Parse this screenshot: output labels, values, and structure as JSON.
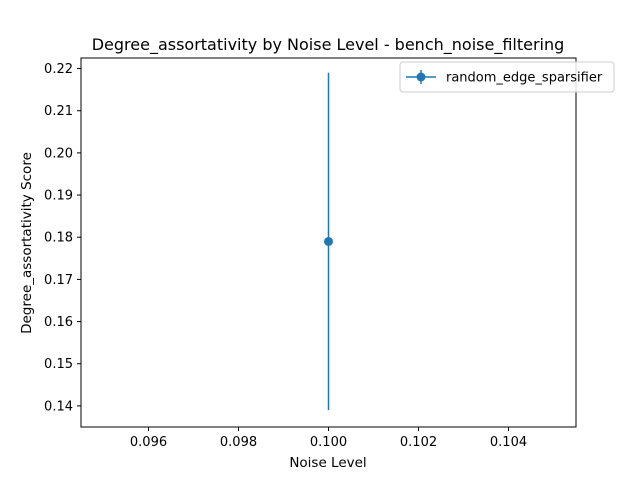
{
  "chart_data": {
    "type": "scatter",
    "title": "Degree_assortativity by Noise Level - bench_noise_filtering",
    "xlabel": "Noise Level",
    "ylabel": "Degree_assortativity Score",
    "xlim": [
      0.0945,
      0.1055
    ],
    "ylim": [
      0.135,
      0.2225
    ],
    "x_ticks": [
      0.096,
      0.098,
      0.1,
      0.102,
      0.104
    ],
    "x_tick_labels": [
      "0.096",
      "0.098",
      "0.100",
      "0.102",
      "0.104"
    ],
    "y_ticks": [
      0.14,
      0.15,
      0.16,
      0.17,
      0.18,
      0.19,
      0.2,
      0.21,
      0.22
    ],
    "y_tick_labels": [
      "0.14",
      "0.15",
      "0.16",
      "0.17",
      "0.18",
      "0.19",
      "0.20",
      "0.21",
      "0.22"
    ],
    "grid": false,
    "legend_position": "top-right",
    "series": [
      {
        "name": "random_edge_sparsifier",
        "color": "#1f77b4",
        "marker": "circle",
        "x": [
          0.1
        ],
        "y": [
          0.179
        ],
        "error": [
          0.04
        ]
      }
    ]
  }
}
